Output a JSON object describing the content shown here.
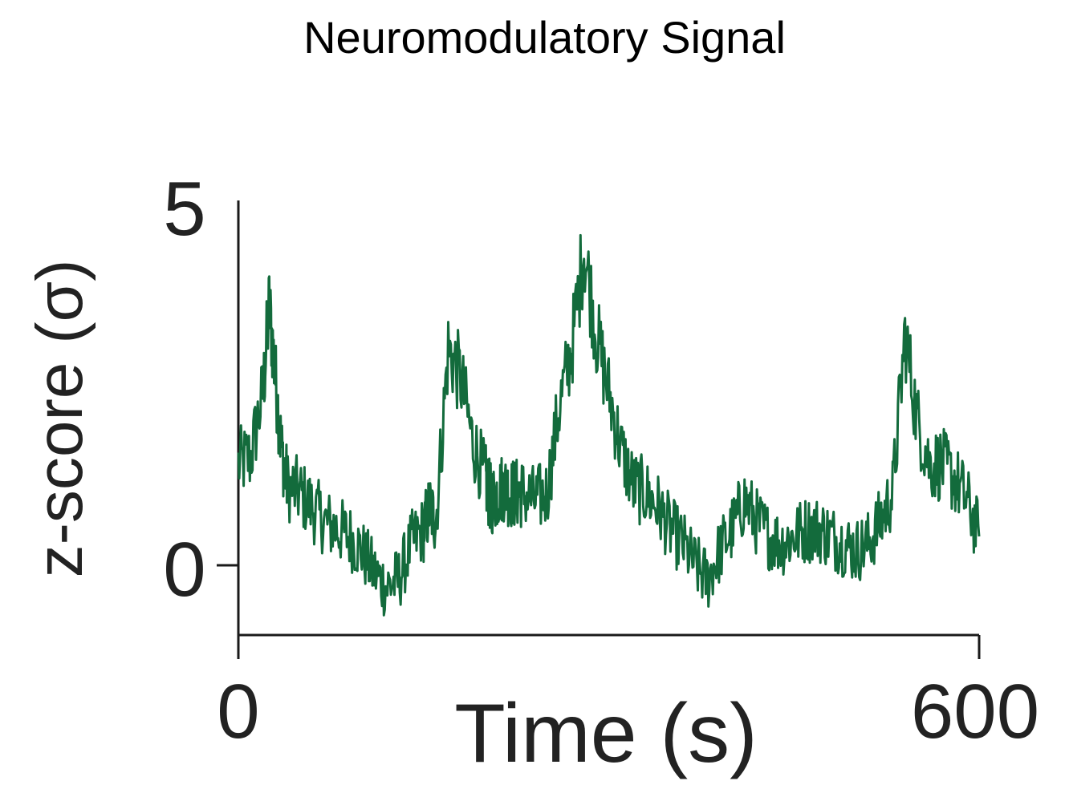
{
  "chart_data": {
    "type": "line",
    "title": "Neuromodulatory Signal",
    "xlabel": "Time (s)",
    "ylabel": "z-score (σ)",
    "xlim": [
      0,
      600
    ],
    "ylim": [
      -1,
      5
    ],
    "x_ticks": [
      0,
      600
    ],
    "y_ticks": [
      5,
      0
    ],
    "x_tick_labels": [
      "0",
      "600"
    ],
    "y_tick_labels": [
      "5",
      "0"
    ],
    "grid": false,
    "series": [
      {
        "color": "#136b3c",
        "x": [
          0,
          10,
          20,
          25,
          30,
          35,
          40,
          50,
          60,
          70,
          80,
          90,
          100,
          110,
          120,
          130,
          140,
          150,
          155,
          160,
          170,
          180,
          190,
          200,
          203,
          205,
          210,
          215,
          220,
          225,
          230,
          240,
          250,
          260,
          270,
          280,
          290,
          300,
          310,
          320,
          330,
          340,
          350,
          360,
          370,
          380,
          390,
          400,
          410,
          420,
          430,
          440,
          450,
          460,
          470,
          480,
          490,
          500,
          510,
          520,
          530,
          540,
          550,
          560,
          570,
          580,
          590,
          600
        ],
        "values": [
          1.4,
          1.5,
          2.4,
          3.6,
          2.6,
          1.6,
          1.1,
          1.0,
          0.8,
          0.6,
          0.5,
          0.4,
          0.2,
          -0.1,
          -0.3,
          -0.2,
          0.3,
          0.5,
          0.8,
          0.6,
          3.0,
          2.6,
          1.7,
          1.2,
          1.0,
          0.9,
          1.0,
          1.1,
          1.0,
          1.0,
          1.0,
          0.9,
          1.0,
          2.2,
          3.0,
          4.4,
          3.2,
          2.4,
          1.6,
          1.1,
          1.0,
          0.8,
          0.5,
          0.3,
          0.0,
          -0.2,
          0.2,
          0.5,
          0.9,
          0.6,
          0.4,
          0.3,
          0.4,
          0.5,
          0.5,
          0.4,
          0.3,
          0.2,
          0.3,
          0.6,
          1.0,
          3.2,
          2.0,
          1.4,
          1.4,
          1.2,
          0.9,
          0.4
        ]
      }
    ]
  }
}
